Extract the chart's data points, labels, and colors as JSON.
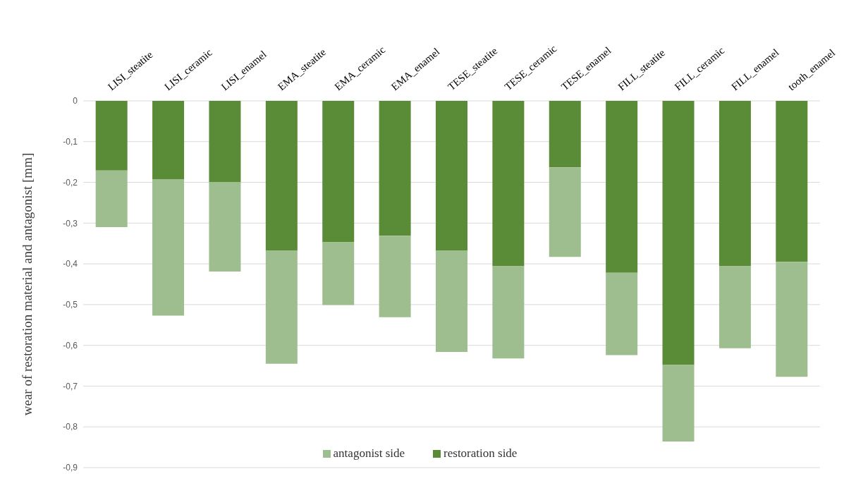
{
  "chart_data": {
    "type": "bar",
    "stacked": true,
    "ylabel": "wear of restoration material and antagonist  [mm]",
    "categories": [
      "LISI_steatite",
      "LISI_ceramic",
      "LISI_enamel",
      "EMA_steatite",
      "EMA_ceramic",
      "EMA_enamel",
      "TESE_steatite",
      "TESE_ceramic",
      "TESE_enamel",
      "FILL_steatite",
      "FILL_ceramic",
      "FILL_enamel",
      "tooth_enamel"
    ],
    "series": [
      {
        "name": "restoration side",
        "color": "#5a8c37",
        "values": [
          -0.171,
          -0.192,
          -0.199,
          -0.367,
          -0.347,
          -0.331,
          -0.367,
          -0.406,
          -0.163,
          -0.422,
          -0.648,
          -0.406,
          -0.395
        ]
      },
      {
        "name": "antagonist side",
        "color": "#9fbe8f",
        "values": [
          -0.139,
          -0.335,
          -0.22,
          -0.278,
          -0.154,
          -0.2,
          -0.249,
          -0.226,
          -0.22,
          -0.202,
          -0.188,
          -0.201,
          -0.282
        ]
      }
    ],
    "ylim": [
      -0.9,
      0
    ],
    "yticks": [
      {
        "value": 0,
        "label": "0"
      },
      {
        "value": -0.1,
        "label": "-0,1"
      },
      {
        "value": -0.2,
        "label": "-0,2"
      },
      {
        "value": -0.3,
        "label": "-0,3"
      },
      {
        "value": -0.4,
        "label": "-0,4"
      },
      {
        "value": -0.5,
        "label": "-0,5"
      },
      {
        "value": -0.6,
        "label": "-0,6"
      },
      {
        "value": -0.7,
        "label": "-0,7"
      },
      {
        "value": -0.8,
        "label": "-0,8"
      },
      {
        "value": -0.9,
        "label": "-0,9"
      }
    ],
    "grid": "y",
    "legend": "bottom"
  }
}
